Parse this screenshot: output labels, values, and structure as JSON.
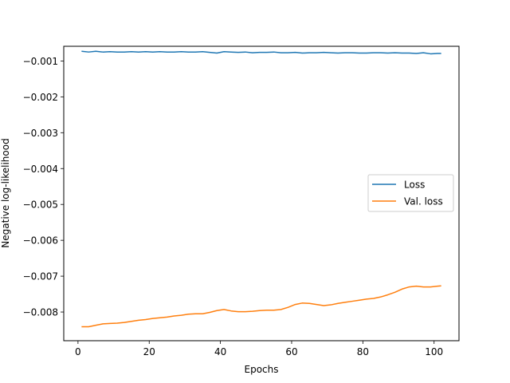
{
  "chart_data": {
    "type": "line",
    "title": "",
    "xlabel": "Epochs",
    "ylabel": "Negative log-likelihood",
    "xlim": [
      -4,
      107
    ],
    "ylim": [
      -0.0088,
      -0.00059
    ],
    "xticks": [
      0,
      20,
      40,
      60,
      80,
      100
    ],
    "xtick_labels": [
      "0",
      "20",
      "40",
      "60",
      "80",
      "100"
    ],
    "yticks": [
      -0.001,
      -0.002,
      -0.003,
      -0.004,
      -0.005,
      -0.006,
      -0.007,
      -0.008
    ],
    "ytick_labels": [
      "−0.001",
      "−0.002",
      "−0.003",
      "−0.004",
      "−0.005",
      "−0.006",
      "−0.007",
      "−0.008"
    ],
    "grid": false,
    "legend_position": "center-right",
    "series": [
      {
        "name": "Loss",
        "color": "#1f77b4",
        "x": [
          1,
          3,
          5,
          7,
          9,
          11,
          13,
          15,
          17,
          19,
          21,
          23,
          25,
          27,
          29,
          31,
          33,
          35,
          37,
          39,
          41,
          43,
          45,
          47,
          49,
          51,
          53,
          55,
          57,
          59,
          61,
          63,
          65,
          67,
          69,
          71,
          73,
          75,
          77,
          79,
          81,
          83,
          85,
          87,
          89,
          91,
          93,
          95,
          97,
          99,
          101,
          102
        ],
        "y": [
          -0.00073,
          -0.00075,
          -0.00073,
          -0.00075,
          -0.00074,
          -0.00075,
          -0.00075,
          -0.00074,
          -0.00075,
          -0.00074,
          -0.00075,
          -0.00074,
          -0.00075,
          -0.00075,
          -0.00074,
          -0.00075,
          -0.00075,
          -0.00074,
          -0.00076,
          -0.00078,
          -0.00074,
          -0.00075,
          -0.00076,
          -0.00075,
          -0.00077,
          -0.00076,
          -0.00076,
          -0.00075,
          -0.00077,
          -0.00077,
          -0.00076,
          -0.00078,
          -0.00077,
          -0.00077,
          -0.00076,
          -0.00077,
          -0.00078,
          -0.00077,
          -0.00077,
          -0.00078,
          -0.00078,
          -0.00077,
          -0.00077,
          -0.00078,
          -0.00077,
          -0.00078,
          -0.00078,
          -0.00079,
          -0.00077,
          -0.0008,
          -0.00079,
          -0.00079
        ]
      },
      {
        "name": "Val. loss",
        "color": "#ff7f0e",
        "x": [
          1,
          3,
          5,
          7,
          9,
          11,
          13,
          15,
          17,
          19,
          21,
          23,
          25,
          27,
          29,
          31,
          33,
          35,
          37,
          39,
          41,
          43,
          45,
          47,
          49,
          51,
          53,
          55,
          57,
          59,
          61,
          63,
          65,
          67,
          69,
          71,
          73,
          75,
          77,
          79,
          81,
          83,
          85,
          87,
          89,
          91,
          93,
          95,
          97,
          99,
          101,
          102
        ],
        "y": [
          -0.00841,
          -0.00841,
          -0.00837,
          -0.00833,
          -0.00832,
          -0.00831,
          -0.00829,
          -0.00826,
          -0.00823,
          -0.00821,
          -0.00818,
          -0.00816,
          -0.00814,
          -0.00811,
          -0.00809,
          -0.00806,
          -0.00805,
          -0.00805,
          -0.00801,
          -0.00796,
          -0.00793,
          -0.00797,
          -0.00799,
          -0.00799,
          -0.00798,
          -0.00796,
          -0.00795,
          -0.00795,
          -0.00793,
          -0.00787,
          -0.00779,
          -0.00775,
          -0.00776,
          -0.00779,
          -0.00782,
          -0.0078,
          -0.00776,
          -0.00773,
          -0.0077,
          -0.00767,
          -0.00764,
          -0.00762,
          -0.00758,
          -0.00752,
          -0.00745,
          -0.00736,
          -0.0073,
          -0.00728,
          -0.0073,
          -0.0073,
          -0.00728,
          -0.00727
        ]
      }
    ]
  }
}
